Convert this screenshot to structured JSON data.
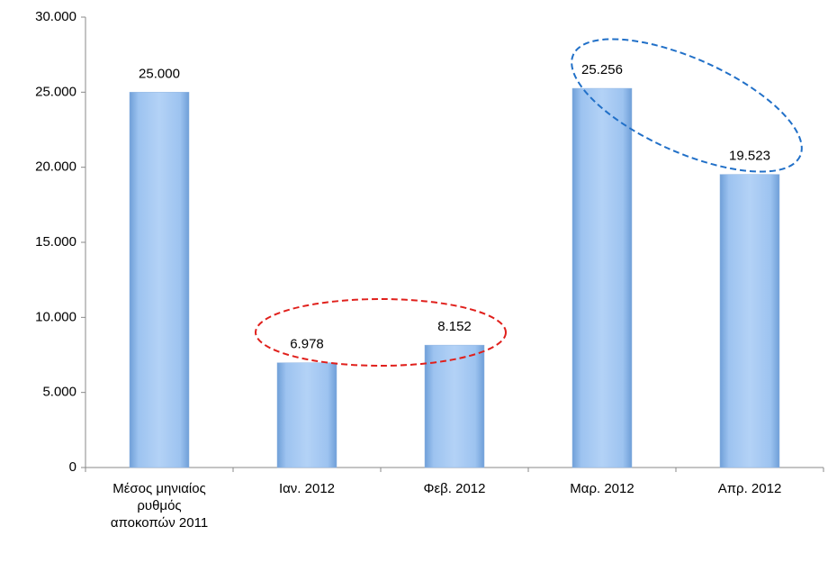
{
  "chart_data": {
    "type": "bar",
    "categories": [
      "Μέσος μηνιαίος ρυθμός αποκοπών 2011",
      "Ιαν. 2012",
      "Φεβ. 2012",
      "Μαρ. 2012",
      "Απρ. 2012"
    ],
    "values": [
      25000,
      6978,
      8152,
      25256,
      19523
    ],
    "value_labels": [
      "25.000",
      "6.978",
      "8.152",
      "25.256",
      "19.523"
    ],
    "color": "#9dc3f0",
    "ylim": [
      0,
      30000
    ],
    "yticks": [
      0,
      {
        "value": 5000,
        "label": "5.000"
      },
      {
        "value": 10000,
        "label": "10.000"
      },
      {
        "value": 15000,
        "label": "15.000"
      },
      {
        "value": 20000,
        "label": "20.000"
      },
      {
        "value": 25000,
        "label": "25.000"
      },
      {
        "value": 30000,
        "label": "30.000"
      }
    ],
    "grid": false
  }
}
